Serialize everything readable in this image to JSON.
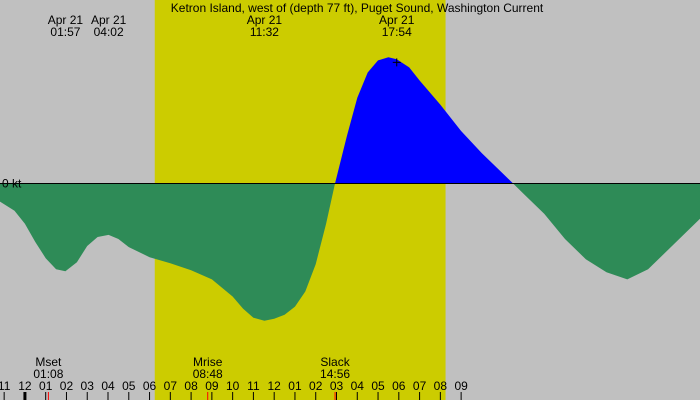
{
  "chart_data": {
    "type": "area",
    "title": "Ketron Island, west of (depth 77 ft), Puget Sound, Washington Current",
    "y_zero_label": "0 kt",
    "x_range_hours": [
      -1.2,
      32.5
    ],
    "y_range_kt": [
      -1.65,
      1.6
    ],
    "daylight": {
      "start_hour": 6.25,
      "end_hour": 20.25
    },
    "colors": {
      "background": "#c0c0c0",
      "daylight": "#cccc00",
      "ebb": "#2e8b57",
      "flood": "#0000ff",
      "event_tick": "#ff0000",
      "midnight_tick": "#000000"
    },
    "top_events": [
      {
        "date": "Apr 21",
        "time": "01:57",
        "hour": 1.95
      },
      {
        "date": "Apr 21",
        "time": "04:02",
        "hour": 4.03
      },
      {
        "date": "Apr 21",
        "time": "11:32",
        "hour": 11.53
      },
      {
        "date": "Apr 21",
        "time": "17:54",
        "hour": 17.9
      }
    ],
    "bottom_events": [
      {
        "name": "Mset",
        "time": "01:08",
        "hour": 1.13
      },
      {
        "name": "Mrise",
        "time": "08:48",
        "hour": 8.8
      },
      {
        "name": "Slack",
        "time": "14:56",
        "hour": 14.93
      }
    ],
    "max_marker": {
      "hour": 17.9,
      "kt": 1.2
    },
    "x_ticks": [
      {
        "label": "11",
        "hour": -1
      },
      {
        "label": "12",
        "hour": 0
      },
      {
        "label": "01",
        "hour": 1
      },
      {
        "label": "02",
        "hour": 2
      },
      {
        "label": "03",
        "hour": 3
      },
      {
        "label": "04",
        "hour": 4
      },
      {
        "label": "05",
        "hour": 5
      },
      {
        "label": "06",
        "hour": 6
      },
      {
        "label": "07",
        "hour": 7
      },
      {
        "label": "08",
        "hour": 8
      },
      {
        "label": "09",
        "hour": 9
      },
      {
        "label": "10",
        "hour": 10
      },
      {
        "label": "11",
        "hour": 11
      },
      {
        "label": "12",
        "hour": 12
      },
      {
        "label": "01",
        "hour": 13
      },
      {
        "label": "02",
        "hour": 14
      },
      {
        "label": "03",
        "hour": 15
      },
      {
        "label": "04",
        "hour": 16
      },
      {
        "label": "05",
        "hour": 17
      },
      {
        "label": "06",
        "hour": 18
      },
      {
        "label": "07",
        "hour": 19
      },
      {
        "label": "08",
        "hour": 20
      },
      {
        "label": "09",
        "hour": 21
      }
    ],
    "series": [
      {
        "x": [
          -1.2,
          -0.5,
          0,
          0.5,
          1,
          1.5,
          1.95,
          2.5,
          3,
          3.5,
          4.03,
          4.5,
          5,
          6,
          7,
          8,
          9,
          10,
          10.5,
          11,
          11.53,
          12,
          12.5,
          13,
          13.5,
          14,
          14.5,
          14.93,
          15.5,
          16,
          16.5,
          17,
          17.5,
          17.9,
          18.5,
          19,
          20,
          21,
          22,
          23,
          24,
          25,
          26,
          27,
          28,
          29,
          30,
          31,
          32,
          32.5
        ],
        "y": [
          -0.18,
          -0.27,
          -0.4,
          -0.58,
          -0.74,
          -0.85,
          -0.87,
          -0.78,
          -0.62,
          -0.53,
          -0.51,
          -0.55,
          -0.63,
          -0.73,
          -0.79,
          -0.86,
          -0.95,
          -1.12,
          -1.24,
          -1.33,
          -1.36,
          -1.34,
          -1.3,
          -1.22,
          -1.07,
          -0.8,
          -0.4,
          0.0,
          0.47,
          0.85,
          1.1,
          1.22,
          1.25,
          1.23,
          1.15,
          1.02,
          0.78,
          0.52,
          0.3,
          0.1,
          -0.1,
          -0.3,
          -0.55,
          -0.75,
          -0.88,
          -0.95,
          -0.85,
          -0.65,
          -0.45,
          -0.35
        ]
      }
    ]
  }
}
